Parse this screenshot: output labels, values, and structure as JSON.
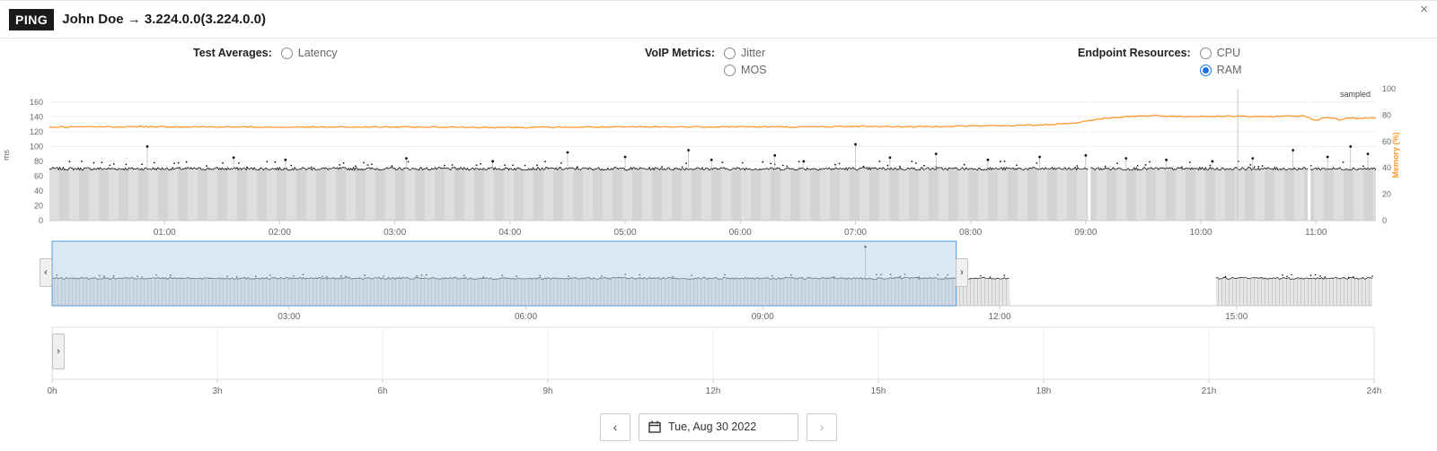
{
  "header": {
    "badge": "PING",
    "title": "John Doe → 3.224.0.0(3.224.0.0)",
    "close_label": "×"
  },
  "controls": {
    "test_averages": {
      "label": "Test Averages:",
      "options": [
        {
          "label": "Latency",
          "checked": false
        }
      ]
    },
    "voip_metrics": {
      "label": "VoIP Metrics:",
      "options": [
        {
          "label": "Jitter",
          "checked": false
        },
        {
          "label": "MOS",
          "checked": false
        }
      ]
    },
    "endpoint_resources": {
      "label": "Endpoint Resources:",
      "options": [
        {
          "label": "CPU",
          "checked": false
        },
        {
          "label": "RAM",
          "checked": true
        }
      ]
    }
  },
  "chart_data": {
    "type": "line",
    "main": {
      "sampled_label": "sampled",
      "y_left_label": "ms",
      "y_right_label": "Memory (%)",
      "y_left_ticks": [
        0,
        20,
        40,
        60,
        80,
        100,
        120,
        140,
        160
      ],
      "y_left_max": 178,
      "y_right_ticks": [
        0,
        20,
        40,
        60,
        80,
        100
      ],
      "x_min": 0,
      "x_max": 11.52,
      "x_ticks": [
        {
          "h": 1,
          "label": "01:00"
        },
        {
          "h": 2,
          "label": "02:00"
        },
        {
          "h": 3,
          "label": "03:00"
        },
        {
          "h": 4,
          "label": "04:00"
        },
        {
          "h": 5,
          "label": "05:00"
        },
        {
          "h": 6,
          "label": "06:00"
        },
        {
          "h": 7,
          "label": "07:00"
        },
        {
          "h": 8,
          "label": "08:00"
        },
        {
          "h": 9,
          "label": "09:00"
        },
        {
          "h": 10,
          "label": "10:00"
        },
        {
          "h": 11,
          "label": "11:00"
        }
      ],
      "series": [
        {
          "name": "latency",
          "unit": "ms",
          "color": "#141414",
          "baseline": 70,
          "noise": 4,
          "spikes": [
            [
              0.85,
              100
            ],
            [
              1.6,
              85
            ],
            [
              2.05,
              82
            ],
            [
              3.1,
              84
            ],
            [
              3.85,
              80
            ],
            [
              4.5,
              92
            ],
            [
              5.0,
              86
            ],
            [
              5.55,
              95
            ],
            [
              5.75,
              82
            ],
            [
              6.3,
              88
            ],
            [
              6.55,
              80
            ],
            [
              7.0,
              103
            ],
            [
              7.3,
              85
            ],
            [
              7.7,
              90
            ],
            [
              8.15,
              82
            ],
            [
              8.6,
              86
            ],
            [
              9.0,
              88
            ],
            [
              9.35,
              84
            ],
            [
              9.7,
              82
            ],
            [
              10.1,
              80
            ],
            [
              10.45,
              84
            ],
            [
              10.8,
              95
            ],
            [
              11.1,
              86
            ],
            [
              11.3,
              100
            ],
            [
              11.45,
              90
            ]
          ]
        },
        {
          "name": "memory",
          "unit": "%",
          "color": "#ff9830",
          "points": [
            [
              0,
              71
            ],
            [
              1,
              71.3
            ],
            [
              2,
              70.8
            ],
            [
              3,
              71
            ],
            [
              4,
              70.7
            ],
            [
              5,
              71
            ],
            [
              6,
              71.2
            ],
            [
              6.5,
              71
            ],
            [
              7,
              71.5
            ],
            [
              7.5,
              71.2
            ],
            [
              8,
              71.8
            ],
            [
              8.3,
              72
            ],
            [
              8.6,
              72.5
            ],
            [
              8.9,
              74
            ],
            [
              9.1,
              77
            ],
            [
              9.35,
              79
            ],
            [
              9.6,
              79.5
            ],
            [
              9.9,
              79
            ],
            [
              10.2,
              79.3
            ],
            [
              10.5,
              78.8
            ],
            [
              10.7,
              79.2
            ],
            [
              10.9,
              79.5
            ],
            [
              11.0,
              76
            ],
            [
              11.1,
              78.5
            ],
            [
              11.2,
              76.5
            ],
            [
              11.3,
              78
            ],
            [
              11.4,
              77.5
            ],
            [
              11.52,
              77.8
            ]
          ]
        }
      ],
      "gaps": [
        9.03,
        10.94
      ],
      "cursor_line": 10.32,
      "area_color": "#dadada"
    },
    "navigator": {
      "x_max": 16.72,
      "y_max": 160,
      "baseline": 70,
      "x_ticks": [
        {
          "h": 3,
          "label": "03:00"
        },
        {
          "h": 6,
          "label": "06:00"
        },
        {
          "h": 9,
          "label": "09:00"
        },
        {
          "h": 12,
          "label": "12:00"
        },
        {
          "h": 15,
          "label": "15:00"
        }
      ],
      "segments": [
        [
          0,
          12.13
        ],
        [
          14.74,
          16.72
        ]
      ],
      "selection": [
        0,
        11.45
      ],
      "selection_color": "#aecdeb",
      "selection_border": "#5b9bd5",
      "spikes": [
        [
          10.3,
          150
        ]
      ]
    },
    "day_axis": {
      "x_max": 24,
      "ticks": [
        {
          "h": 0,
          "label": "0h"
        },
        {
          "h": 3,
          "label": "3h"
        },
        {
          "h": 6,
          "label": "6h"
        },
        {
          "h": 9,
          "label": "9h"
        },
        {
          "h": 12,
          "label": "12h"
        },
        {
          "h": 15,
          "label": "15h"
        },
        {
          "h": 18,
          "label": "18h"
        },
        {
          "h": 21,
          "label": "21h"
        },
        {
          "h": 24,
          "label": "24h"
        }
      ]
    }
  },
  "navigator_controls": {
    "scroll_left": "‹",
    "selection_handle": "›"
  },
  "day_controls": {
    "handle": "›"
  },
  "footer": {
    "prev": "‹",
    "next": "›",
    "date": "Tue, Aug 30 2022"
  }
}
